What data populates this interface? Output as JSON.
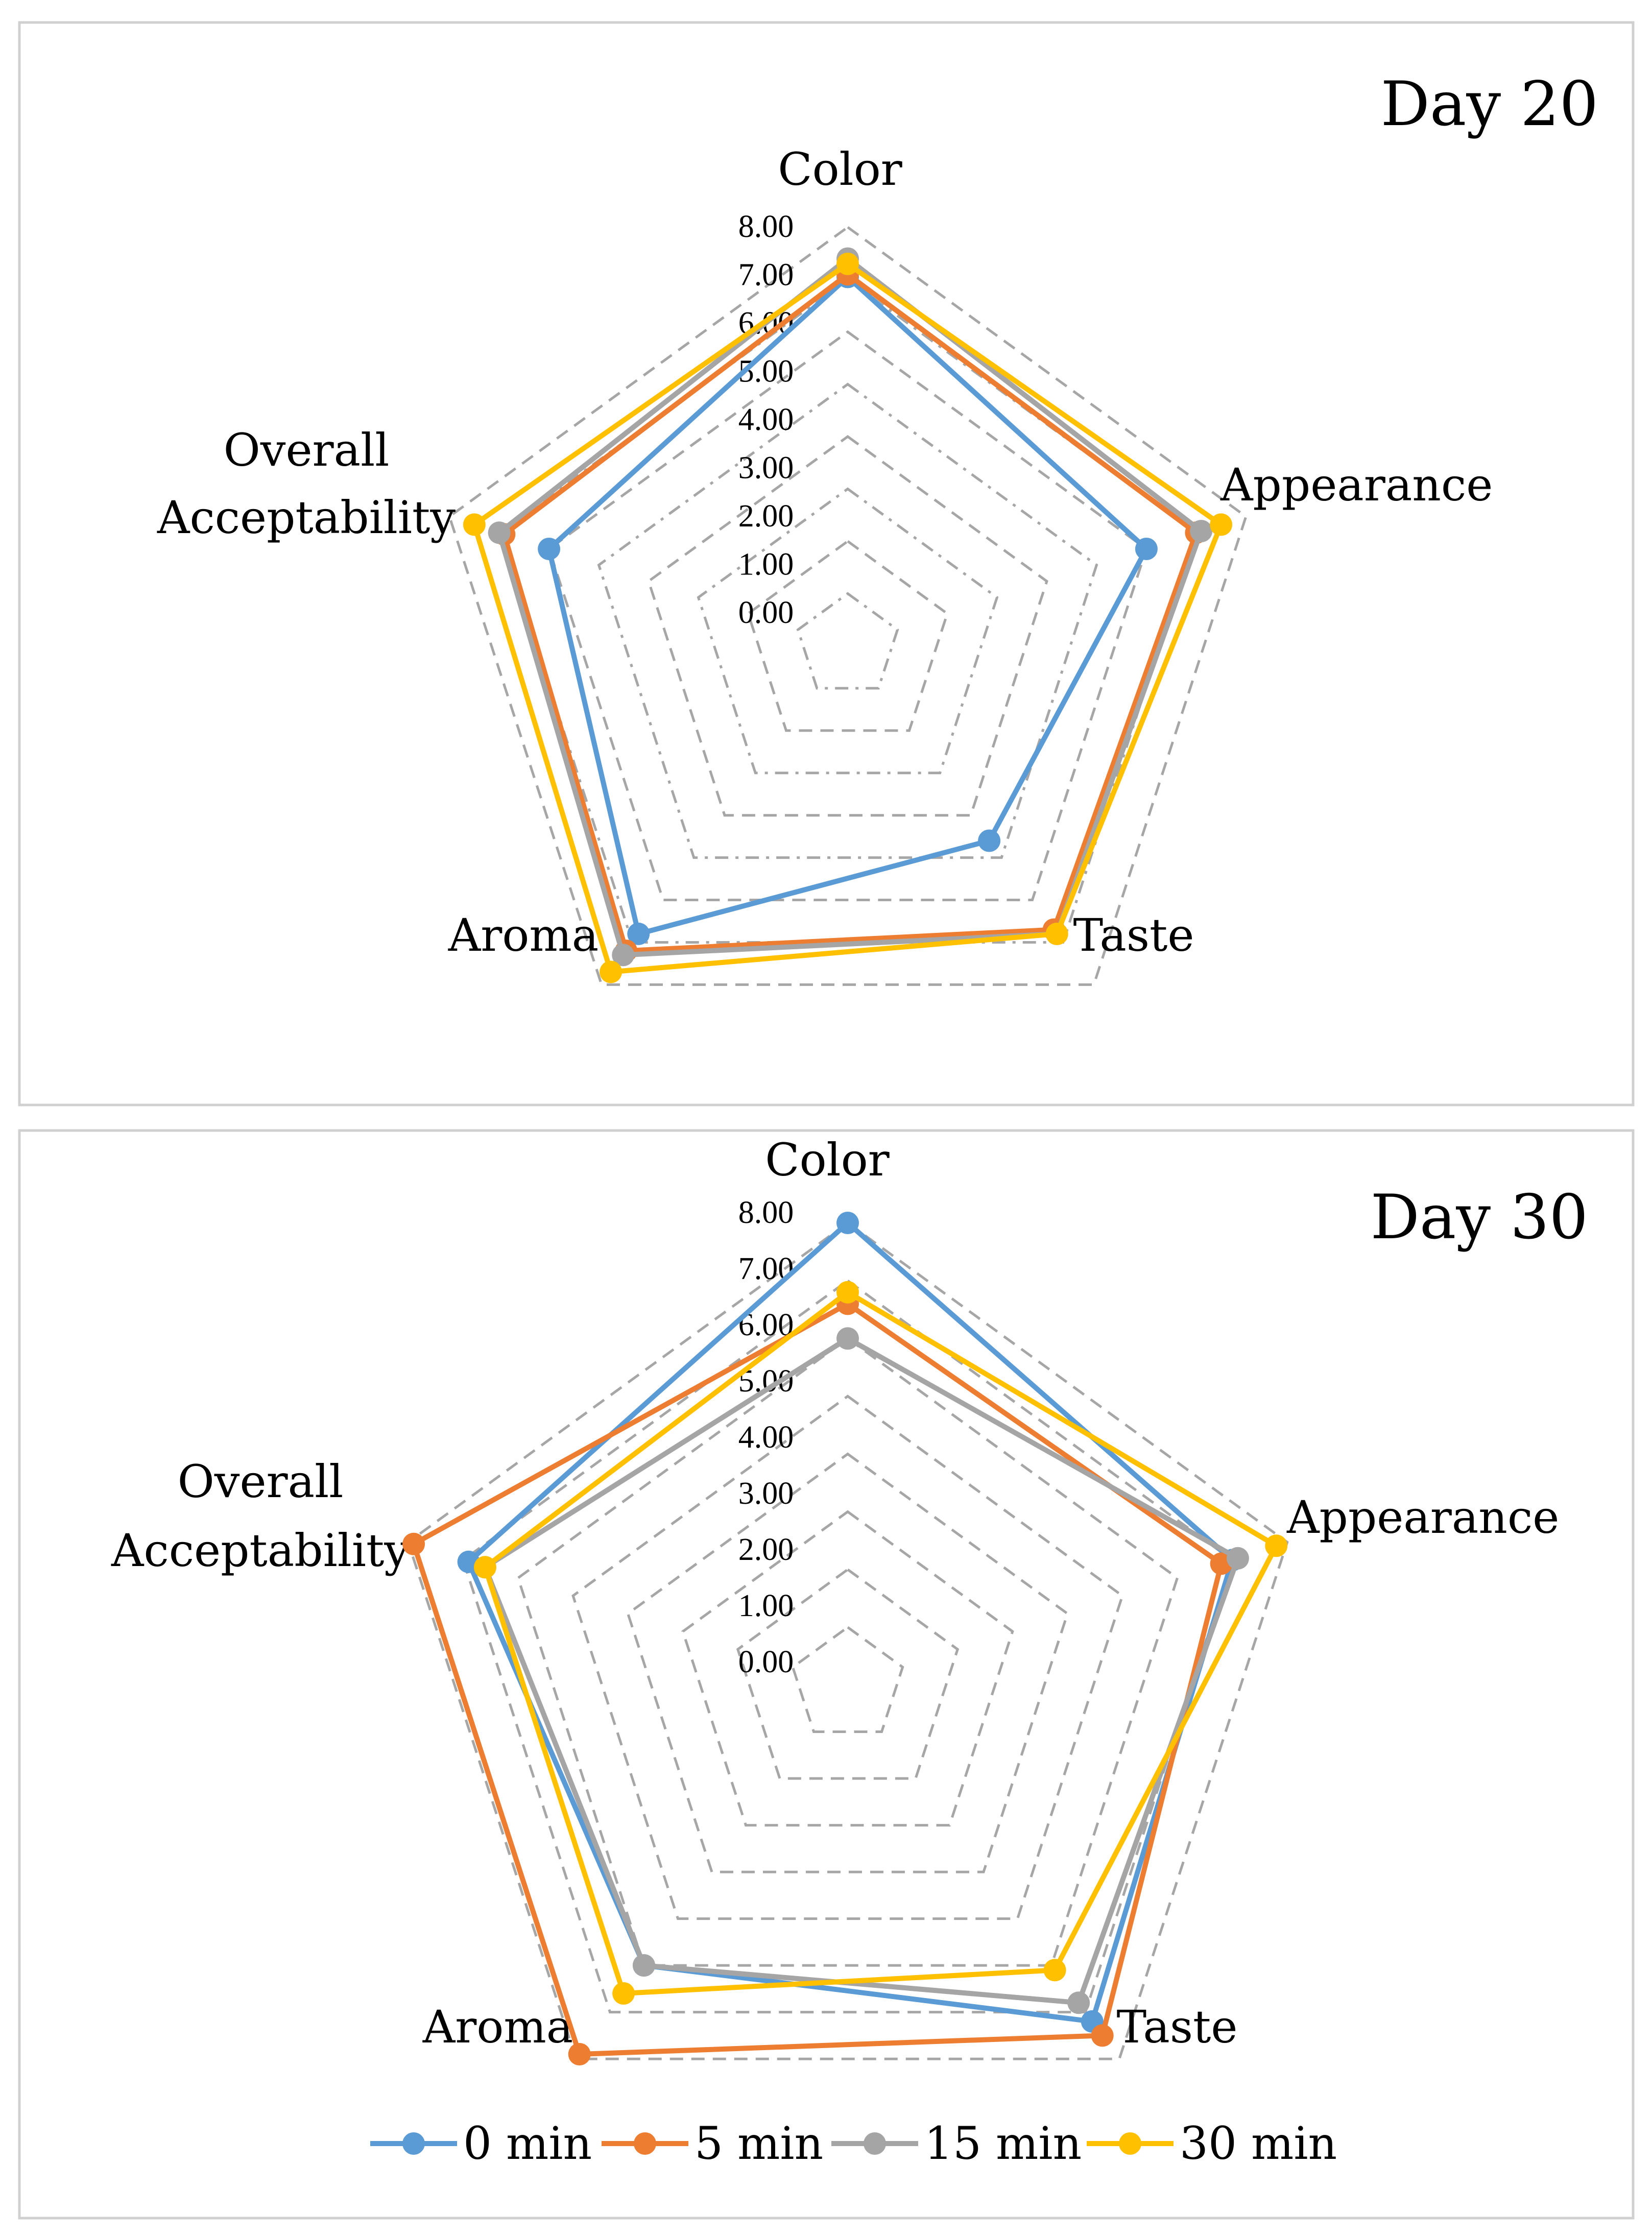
{
  "chart_data": [
    {
      "type": "radar",
      "title": "Day 20",
      "axes": [
        "Color",
        "Appearance",
        "Taste",
        "Aroma",
        "Overall\nAcceptability"
      ],
      "tick_labels": [
        "0.00",
        "1.00",
        "2.00",
        "3.00",
        "4.00",
        "5.00",
        "6.00",
        "7.00",
        "8.00"
      ],
      "range": [
        0,
        8
      ],
      "series": [
        {
          "name": "0 min",
          "values": [
            7.05,
            6.0,
            4.6,
            6.8,
            6.0
          ]
        },
        {
          "name": "5 min",
          "values": [
            7.1,
            7.0,
            6.7,
            7.2,
            6.9
          ]
        },
        {
          "name": "15 min",
          "values": [
            7.4,
            7.1,
            6.8,
            7.3,
            7.0
          ]
        },
        {
          "name": "30 min",
          "values": [
            7.3,
            7.5,
            6.8,
            7.7,
            7.5
          ]
        }
      ]
    },
    {
      "type": "radar",
      "title": "Day 30",
      "axes": [
        "Color",
        "Appearance",
        "Taste",
        "Aroma",
        "Overall\nAcceptability"
      ],
      "tick_labels": [
        "0.00",
        "1.00",
        "2.00",
        "3.00",
        "4.00",
        "5.00",
        "6.00",
        "7.00",
        "8.00"
      ],
      "range": [
        0,
        8
      ],
      "series": [
        {
          "name": "0 min",
          "values": [
            8.0,
            7.0,
            7.2,
            6.0,
            6.9
          ]
        },
        {
          "name": "5 min",
          "values": [
            6.6,
            6.8,
            7.5,
            7.9,
            7.9
          ]
        },
        {
          "name": "15 min",
          "values": [
            6.0,
            7.1,
            6.8,
            6.0,
            6.6
          ]
        },
        {
          "name": "30 min",
          "values": [
            6.8,
            7.8,
            6.1,
            6.6,
            6.6
          ]
        }
      ]
    }
  ],
  "legend": [
    "0 min",
    "5 min",
    "15 min",
    "30 min"
  ],
  "colors": {
    "series": [
      "#5b9bd5",
      "#ed7d31",
      "#a5a5a5",
      "#ffc000"
    ],
    "grid": "#a6a6a6",
    "frame": "#d0d0d0"
  }
}
